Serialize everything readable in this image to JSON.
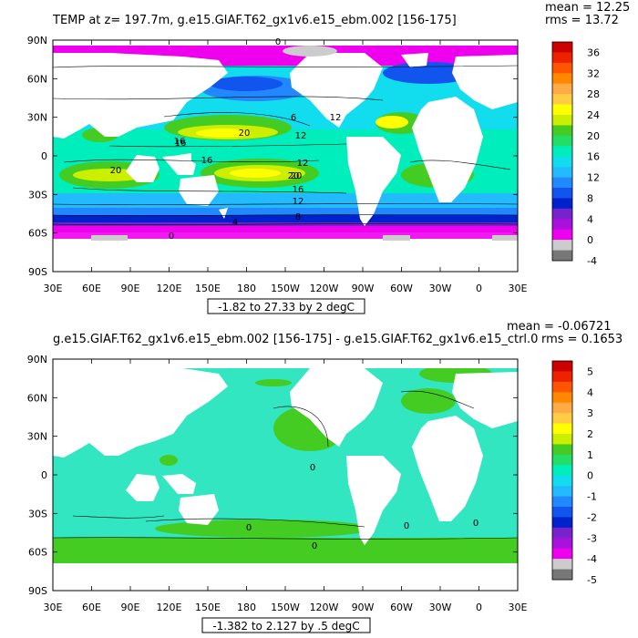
{
  "panels": [
    {
      "title": "TEMP at z= 197.7m, g.e15.GIAF.T62_gx1v6.e15_ebm.002 [156-175]",
      "stat_mean": "mean = 12.25",
      "stat_rms": "rms = 13.72",
      "range_label": "-1.82 to 27.33 by 2 degC",
      "lat_labels": [
        "90N",
        "60N",
        "30N",
        "0",
        "30S",
        "60S",
        "90S"
      ],
      "lon_labels": [
        "30E",
        "60E",
        "90E",
        "120E",
        "150E",
        "180",
        "150W",
        "120W",
        "90W",
        "60W",
        "30W",
        "0",
        "30E"
      ],
      "legend_labels": [
        "36",
        "32",
        "28",
        "24",
        "20",
        "16",
        "12",
        "8",
        "4",
        "0",
        "-4"
      ],
      "legend_colors": [
        "#cc0000",
        "#ee2200",
        "#ff5500",
        "#ff8800",
        "#ffaa44",
        "#ffcc44",
        "#ffff00",
        "#ccee00",
        "#44cc22",
        "#22dd66",
        "#00eebb",
        "#11ddee",
        "#22bbff",
        "#2288ff",
        "#1155ee",
        "#0022cc",
        "#7722cc",
        "#aa11dd",
        "#ee00ee",
        "#cccccc",
        "#777777"
      ],
      "contour_labels": [
        "0",
        "6",
        "12",
        "16",
        "20",
        "16",
        "12",
        "20",
        "16",
        "12",
        "8",
        "4",
        "0",
        "20",
        "12",
        "16",
        "20"
      ]
    },
    {
      "title": "g.e15.GIAF.T62_gx1v6.e15_ebm.002 [156-175] - g.e15.GIAF.T62_gx1v6.e15_ctrl.0",
      "stat_mean": "mean = -0.06721",
      "stat_rms": "rms = 0.1653",
      "range_label": "-1.382 to 2.127 by .5 degC",
      "lat_labels": [
        "90N",
        "60N",
        "30N",
        "0",
        "30S",
        "60S",
        "90S"
      ],
      "lon_labels": [
        "30E",
        "60E",
        "90E",
        "120E",
        "150E",
        "180",
        "150W",
        "120W",
        "90W",
        "60W",
        "30W",
        "0",
        "30E"
      ],
      "legend_labels": [
        "5",
        "4",
        "3",
        "2",
        "1",
        "0",
        "-1",
        "-2",
        "-3",
        "-4",
        "-5"
      ],
      "legend_colors": [
        "#cc0000",
        "#ee2200",
        "#ff5500",
        "#ff8800",
        "#ffaa44",
        "#ffcc44",
        "#ffff00",
        "#ccee00",
        "#44cc22",
        "#22dd66",
        "#00eebb",
        "#11ddee",
        "#22bbff",
        "#2288ff",
        "#1155ee",
        "#0022cc",
        "#7722cc",
        "#aa11dd",
        "#ee00ee",
        "#cccccc",
        "#777777"
      ],
      "contour_labels": [
        "0",
        "0",
        "0",
        "0",
        "0"
      ]
    }
  ],
  "colors": {
    "land": "#ffffff",
    "ice": "#cccccc",
    "neg4": "#ee00ee",
    "c0": "#aa11dd",
    "c4": "#0022cc",
    "c8": "#2288ff",
    "c12": "#22bbff",
    "c14": "#11ddee",
    "c16": "#00eebb",
    "c18": "#44cc22",
    "c20": "#ccee00",
    "c22": "#ffff00",
    "diff_neutral": "#33e6c2",
    "diff_pos": "#44cc22"
  }
}
